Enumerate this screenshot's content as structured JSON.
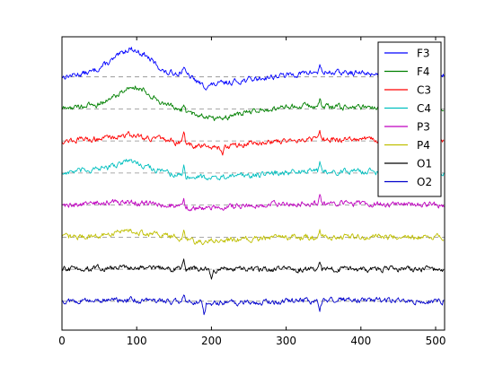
{
  "chart_data": {
    "type": "line",
    "title": "",
    "xlabel": "",
    "ylabel": "",
    "xlim": [
      0,
      512
    ],
    "x_ticks": [
      0,
      100,
      200,
      300,
      400,
      500
    ],
    "x_tick_labels": [
      "0",
      "100",
      "200",
      "300",
      "400",
      "500"
    ],
    "y_ticks_visible": false,
    "grid": false,
    "baseline_style": "dashed-gray",
    "legend": "top-right",
    "n_samples": 512,
    "series": [
      {
        "name": "F3",
        "color": "#0000ff",
        "baseline": 7,
        "trend": [
          [
            0,
            7.0
          ],
          [
            40,
            7.15
          ],
          [
            70,
            7.55
          ],
          [
            90,
            7.9
          ],
          [
            110,
            7.7
          ],
          [
            140,
            7.1
          ],
          [
            160,
            7.15
          ],
          [
            175,
            6.95
          ],
          [
            190,
            6.7
          ],
          [
            230,
            6.85
          ],
          [
            280,
            7.0
          ],
          [
            340,
            7.15
          ],
          [
            420,
            7.1
          ],
          [
            512,
            7.05
          ]
        ],
        "peaks": [
          [
            163,
            0.25
          ],
          [
            345,
            0.2
          ]
        ]
      },
      {
        "name": "F4",
        "color": "#008000",
        "baseline": 6,
        "trend": [
          [
            0,
            6.0
          ],
          [
            50,
            6.15
          ],
          [
            75,
            6.45
          ],
          [
            95,
            6.75
          ],
          [
            115,
            6.5
          ],
          [
            140,
            6.1
          ],
          [
            175,
            5.85
          ],
          [
            210,
            5.7
          ],
          [
            260,
            5.95
          ],
          [
            320,
            6.1
          ],
          [
            380,
            6.05
          ],
          [
            450,
            6.05
          ],
          [
            512,
            6.0
          ]
        ],
        "peaks": [
          [
            163,
            0.28
          ],
          [
            345,
            0.25
          ]
        ]
      },
      {
        "name": "C3",
        "color": "#ff0000",
        "baseline": 5,
        "trend": [
          [
            0,
            5.0
          ],
          [
            60,
            5.1
          ],
          [
            90,
            5.2
          ],
          [
            130,
            5.05
          ],
          [
            180,
            4.85
          ],
          [
            220,
            4.8
          ],
          [
            260,
            4.95
          ],
          [
            320,
            5.05
          ],
          [
            400,
            5.05
          ],
          [
            512,
            5.0
          ]
        ],
        "peaks": [
          [
            163,
            0.25
          ],
          [
            345,
            0.25
          ],
          [
            215,
            -0.22
          ]
        ]
      },
      {
        "name": "C4",
        "color": "#00bfbf",
        "baseline": 4,
        "trend": [
          [
            0,
            4.0
          ],
          [
            60,
            4.15
          ],
          [
            90,
            4.4
          ],
          [
            115,
            4.2
          ],
          [
            140,
            4.0
          ],
          [
            170,
            3.9
          ],
          [
            210,
            3.85
          ],
          [
            260,
            3.95
          ],
          [
            320,
            4.05
          ],
          [
            400,
            4.05
          ],
          [
            512,
            4.0
          ]
        ],
        "peaks": [
          [
            163,
            0.3
          ],
          [
            345,
            0.35
          ]
        ]
      },
      {
        "name": "P3",
        "color": "#bf00bf",
        "baseline": 3,
        "trend": [
          [
            0,
            3.0
          ],
          [
            80,
            3.1
          ],
          [
            120,
            3.05
          ],
          [
            180,
            2.9
          ],
          [
            220,
            2.95
          ],
          [
            300,
            3.05
          ],
          [
            400,
            3.05
          ],
          [
            512,
            3.0
          ]
        ],
        "peaks": [
          [
            163,
            0.25
          ],
          [
            345,
            0.3
          ]
        ]
      },
      {
        "name": "P4",
        "color": "#bfbf00",
        "baseline": 2,
        "trend": [
          [
            0,
            2.0
          ],
          [
            60,
            2.05
          ],
          [
            85,
            2.25
          ],
          [
            110,
            2.1
          ],
          [
            140,
            2.05
          ],
          [
            180,
            1.85
          ],
          [
            220,
            1.9
          ],
          [
            300,
            2.0
          ],
          [
            400,
            2.0
          ],
          [
            512,
            2.0
          ]
        ],
        "peaks": [
          [
            163,
            0.32
          ],
          [
            345,
            0.3
          ]
        ]
      },
      {
        "name": "O1",
        "color": "#000000",
        "baseline": 1,
        "trend": [
          [
            0,
            1.0
          ],
          [
            100,
            1.05
          ],
          [
            200,
            1.0
          ],
          [
            300,
            1.0
          ],
          [
            400,
            1.0
          ],
          [
            512,
            1.0
          ]
        ],
        "peaks": [
          [
            163,
            0.35
          ],
          [
            200,
            -0.3
          ],
          [
            345,
            0.25
          ]
        ]
      },
      {
        "name": "O2",
        "color": "#0000cc",
        "baseline": 0,
        "trend": [
          [
            0,
            0.0
          ],
          [
            100,
            0.05
          ],
          [
            200,
            -0.05
          ],
          [
            300,
            0.0
          ],
          [
            400,
            0.05
          ],
          [
            512,
            0.0
          ]
        ],
        "peaks": [
          [
            163,
            0.3
          ],
          [
            190,
            -0.35
          ],
          [
            345,
            -0.25
          ]
        ]
      }
    ]
  }
}
